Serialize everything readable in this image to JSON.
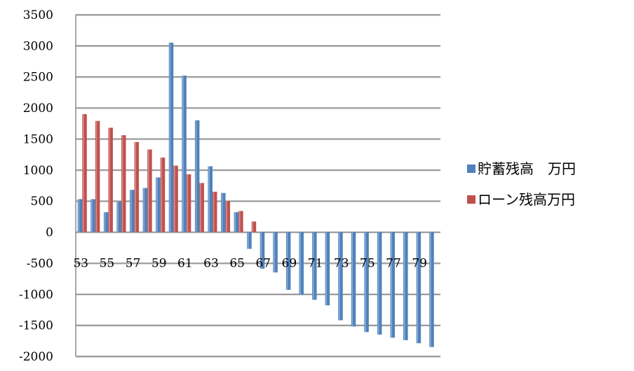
{
  "chart_data": {
    "type": "bar",
    "x": [
      53,
      54,
      55,
      56,
      57,
      58,
      59,
      60,
      61,
      62,
      63,
      64,
      65,
      66,
      67,
      68,
      69,
      70,
      71,
      72,
      73,
      74,
      75,
      76,
      77,
      78,
      79,
      80
    ],
    "x_tick_labels": [
      "53",
      "55",
      "57",
      "59",
      "61",
      "63",
      "65",
      "67",
      "69",
      "71",
      "73",
      "75",
      "77",
      "79"
    ],
    "y_tick_labels": [
      "3500",
      "3000",
      "2500",
      "2000",
      "1500",
      "1000",
      "500",
      "0",
      "-500",
      "-1000",
      "-1500",
      "-2000"
    ],
    "ylim": [
      -2000,
      3500
    ],
    "grid": true,
    "legend_position": "right",
    "series": [
      {
        "name": "貯蓄残高　万円",
        "color": "#4f81bd",
        "values": [
          530,
          530,
          320,
          490,
          680,
          710,
          880,
          3050,
          2520,
          1800,
          1060,
          630,
          320,
          -270,
          -590,
          -650,
          -930,
          -1010,
          -1090,
          -1180,
          -1420,
          -1520,
          -1610,
          -1650,
          -1700,
          -1740,
          -1790,
          -1850
        ]
      },
      {
        "name": "ローン残高万円",
        "color": "#c0504d",
        "values": [
          1900,
          1790,
          1680,
          1560,
          1450,
          1330,
          1200,
          1070,
          930,
          790,
          650,
          500,
          340,
          170,
          0,
          0,
          0,
          0,
          0,
          0,
          0,
          0,
          0,
          0,
          0,
          0,
          0,
          0
        ]
      }
    ]
  }
}
